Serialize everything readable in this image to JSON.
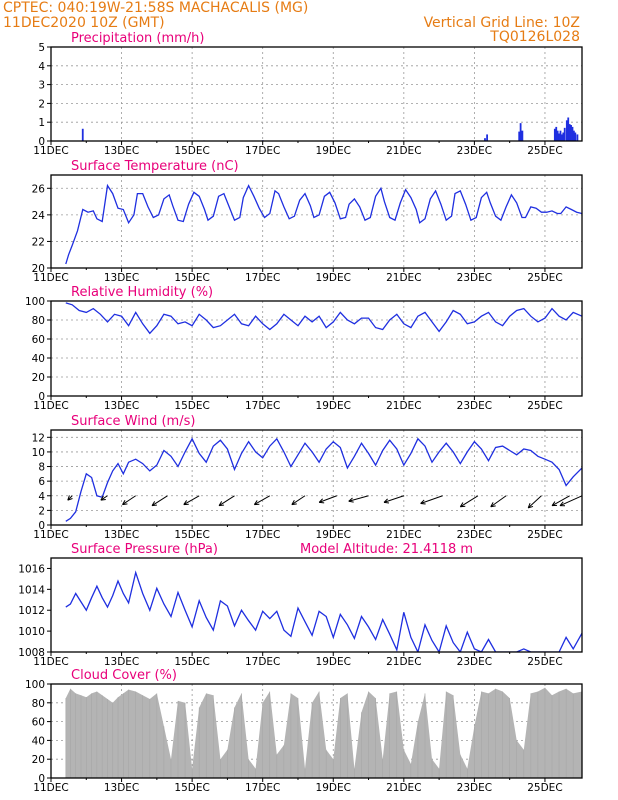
{
  "header": {
    "line1": "CPTEC:   040:19W-21:58S   MACHACALIS (MG)",
    "line2": "11DEC2020  10Z (GMT)",
    "grid_note": "Vertical Grid Line: 10Z",
    "run_code": "TQ0126L028"
  },
  "colors": {
    "header": "#e67c14",
    "title": "#e8007a",
    "series": "#1f2fe0",
    "cloud": "#b4b4b4",
    "grid": "#999999"
  },
  "x_tick_labels": [
    "11DEC",
    "13DEC",
    "15DEC",
    "17DEC",
    "19DEC",
    "21DEC",
    "23DEC",
    "25DEC"
  ],
  "chart_data": [
    {
      "type": "bar",
      "title": "Precipitation (mm/h)",
      "ylim": [
        0,
        5
      ],
      "yticks": [
        0,
        1,
        2,
        3,
        4,
        5
      ],
      "grid": true,
      "x_unit": "days since 11DEC2020 00Z",
      "x": [
        0.9,
        4.34,
        6.0,
        12.3,
        12.36,
        13.27,
        13.31,
        13.36,
        14.28,
        14.32,
        14.36,
        14.4,
        14.44,
        14.48,
        14.52,
        14.56,
        14.62,
        14.66,
        14.7,
        14.74,
        14.78,
        14.82,
        14.86,
        14.92
      ],
      "values": [
        0.65,
        0.03,
        0.04,
        0.15,
        0.35,
        0.5,
        0.95,
        0.55,
        0.65,
        0.75,
        0.55,
        0.4,
        0.55,
        0.35,
        0.45,
        0.7,
        1.1,
        1.25,
        0.9,
        0.85,
        0.75,
        0.55,
        0.45,
        0.35
      ]
    },
    {
      "type": "line",
      "title": "Surface Temperature (nC)",
      "ylim": [
        20,
        27
      ],
      "yticks": [
        20,
        22,
        24,
        26
      ],
      "grid": true,
      "x_unit": "days since 11DEC2020 00Z",
      "x": [
        0.42,
        0.5,
        0.6,
        0.75,
        0.9,
        1.05,
        1.2,
        1.3,
        1.45,
        1.6,
        1.75,
        1.9,
        2.05,
        2.2,
        2.35,
        2.45,
        2.6,
        2.75,
        2.9,
        3.05,
        3.2,
        3.35,
        3.45,
        3.6,
        3.75,
        3.9,
        4.05,
        4.2,
        4.35,
        4.45,
        4.6,
        4.75,
        4.9,
        5.05,
        5.2,
        5.35,
        5.45,
        5.6,
        5.75,
        5.9,
        6.05,
        6.2,
        6.35,
        6.45,
        6.6,
        6.75,
        6.9,
        7.05,
        7.2,
        7.35,
        7.45,
        7.6,
        7.75,
        7.9,
        8.05,
        8.2,
        8.35,
        8.45,
        8.6,
        8.75,
        8.9,
        9.05,
        9.2,
        9.35,
        9.45,
        9.6,
        9.75,
        9.9,
        10.05,
        10.2,
        10.35,
        10.45,
        10.6,
        10.75,
        10.9,
        11.05,
        11.2,
        11.35,
        11.45,
        11.6,
        11.75,
        11.9,
        12.05,
        12.2,
        12.35,
        12.45,
        12.6,
        12.75,
        12.9,
        13.05,
        13.2,
        13.35,
        13.45,
        13.6,
        13.75,
        13.9,
        14.05,
        14.2,
        14.35,
        14.45,
        14.6,
        14.75,
        14.9,
        15.05
      ],
      "values": [
        20.3,
        21.0,
        21.7,
        22.8,
        24.4,
        24.2,
        24.3,
        23.7,
        23.5,
        26.2,
        25.6,
        24.5,
        24.4,
        23.4,
        24.0,
        25.6,
        25.6,
        24.6,
        23.8,
        24.0,
        25.2,
        25.5,
        24.7,
        23.6,
        23.5,
        24.8,
        25.7,
        25.4,
        24.4,
        23.6,
        23.9,
        25.4,
        25.6,
        24.6,
        23.6,
        23.8,
        25.3,
        26.2,
        25.4,
        24.5,
        23.8,
        24.1,
        25.8,
        25.6,
        24.6,
        23.7,
        23.9,
        25.1,
        25.6,
        24.7,
        23.8,
        24.0,
        25.4,
        25.7,
        24.9,
        23.7,
        23.8,
        24.8,
        25.2,
        24.6,
        23.6,
        23.8,
        25.4,
        26.0,
        25.0,
        23.8,
        23.6,
        24.9,
        25.9,
        25.3,
        24.4,
        23.4,
        23.7,
        25.2,
        25.8,
        24.8,
        23.6,
        23.9,
        25.6,
        25.8,
        24.8,
        23.6,
        23.8,
        25.3,
        25.7,
        24.9,
        23.9,
        23.6,
        24.6,
        25.5,
        24.9,
        23.8,
        23.8,
        24.6,
        24.5,
        24.2,
        24.2,
        24.3,
        24.1,
        24.1,
        24.6,
        24.4,
        24.2,
        24.1
      ]
    },
    {
      "type": "line",
      "title": "Relative Humidity (%)",
      "ylim": [
        0,
        100
      ],
      "yticks": [
        0,
        20,
        40,
        60,
        80,
        100
      ],
      "grid": true,
      "x_unit": "days since 11DEC2020 00Z",
      "x": [
        0.42,
        0.6,
        0.8,
        1.0,
        1.2,
        1.4,
        1.6,
        1.8,
        2.0,
        2.2,
        2.4,
        2.6,
        2.8,
        3.0,
        3.2,
        3.4,
        3.6,
        3.8,
        4.0,
        4.2,
        4.4,
        4.6,
        4.8,
        5.0,
        5.2,
        5.4,
        5.6,
        5.8,
        6.0,
        6.2,
        6.4,
        6.6,
        6.8,
        7.0,
        7.2,
        7.4,
        7.6,
        7.8,
        8.0,
        8.2,
        8.4,
        8.6,
        8.8,
        9.0,
        9.2,
        9.4,
        9.6,
        9.8,
        10.0,
        10.2,
        10.4,
        10.6,
        10.8,
        11.0,
        11.2,
        11.4,
        11.6,
        11.8,
        12.0,
        12.2,
        12.4,
        12.6,
        12.8,
        13.0,
        13.2,
        13.4,
        13.6,
        13.8,
        14.0,
        14.2,
        14.4,
        14.6,
        14.8,
        15.05
      ],
      "values": [
        98,
        96,
        90,
        88,
        92,
        86,
        78,
        86,
        84,
        74,
        88,
        76,
        66,
        74,
        86,
        84,
        76,
        78,
        74,
        86,
        80,
        72,
        74,
        80,
        86,
        76,
        74,
        84,
        76,
        70,
        76,
        86,
        80,
        74,
        84,
        78,
        84,
        72,
        78,
        88,
        80,
        76,
        82,
        82,
        72,
        70,
        80,
        86,
        76,
        72,
        84,
        88,
        78,
        68,
        78,
        90,
        86,
        76,
        78,
        84,
        88,
        78,
        74,
        84,
        90,
        92,
        84,
        78,
        82,
        92,
        84,
        80,
        88,
        84
      ]
    },
    {
      "type": "line",
      "title": "Surface Wind (m/s)",
      "ylim": [
        0,
        13
      ],
      "yticks": [
        0,
        2,
        4,
        6,
        8,
        10,
        12
      ],
      "grid": true,
      "x_unit": "days since 11DEC2020 00Z",
      "x": [
        0.42,
        0.55,
        0.7,
        0.85,
        1.0,
        1.15,
        1.3,
        1.45,
        1.6,
        1.75,
        1.9,
        2.05,
        2.2,
        2.4,
        2.6,
        2.8,
        3.0,
        3.2,
        3.4,
        3.6,
        3.8,
        4.0,
        4.2,
        4.4,
        4.6,
        4.8,
        5.0,
        5.2,
        5.4,
        5.6,
        5.8,
        6.0,
        6.2,
        6.4,
        6.6,
        6.8,
        7.0,
        7.2,
        7.4,
        7.6,
        7.8,
        8.0,
        8.2,
        8.4,
        8.6,
        8.8,
        9.0,
        9.2,
        9.4,
        9.6,
        9.8,
        10.0,
        10.2,
        10.4,
        10.6,
        10.8,
        11.0,
        11.2,
        11.4,
        11.6,
        11.8,
        12.0,
        12.2,
        12.4,
        12.6,
        12.8,
        13.0,
        13.2,
        13.4,
        13.6,
        13.8,
        14.0,
        14.2,
        14.4,
        14.6,
        14.8,
        15.05
      ],
      "values": [
        0.5,
        0.9,
        1.8,
        4.6,
        7.0,
        6.5,
        4.0,
        3.8,
        5.8,
        7.4,
        8.4,
        7.0,
        8.6,
        9.0,
        8.4,
        7.4,
        8.2,
        10.2,
        9.4,
        8.0,
        10.0,
        11.8,
        9.8,
        8.6,
        10.8,
        11.6,
        10.4,
        7.6,
        9.8,
        11.4,
        10.0,
        9.2,
        10.8,
        11.8,
        10.0,
        8.0,
        9.6,
        11.2,
        10.0,
        8.6,
        10.4,
        11.4,
        10.6,
        7.8,
        9.4,
        11.2,
        9.8,
        8.2,
        10.2,
        11.6,
        10.4,
        8.2,
        9.8,
        11.8,
        10.8,
        8.6,
        10.0,
        11.2,
        10.0,
        8.4,
        10.0,
        11.4,
        10.4,
        8.8,
        10.6,
        10.8,
        10.2,
        9.6,
        10.4,
        10.2,
        9.4,
        9.0,
        8.6,
        7.6,
        5.4,
        6.6,
        7.8
      ],
      "vector_x": [
        0.6,
        1.6,
        2.4,
        3.3,
        4.2,
        5.2,
        6.2,
        7.2,
        8.1,
        9.0,
        10.0,
        11.1,
        12.1,
        12.9,
        13.9,
        14.7,
        15.05
      ],
      "vector_u": [
        -2,
        -3,
        -6,
        -7,
        -7,
        -7,
        -7,
        -6,
        -8,
        -9,
        -9,
        -10,
        -8,
        -7,
        -6,
        -8,
        -10
      ],
      "vector_v": [
        -4,
        -4,
        -8,
        -9,
        -8,
        -9,
        -8,
        -8,
        -6,
        -5,
        -6,
        -7,
        -10,
        -10,
        -11,
        -9,
        -9
      ]
    },
    {
      "type": "line",
      "title": "Surface Pressure (hPa)",
      "subtitle": "Model Altitude: 21.4118 m",
      "ylim": [
        1008,
        1017
      ],
      "yticks": [
        1008,
        1010,
        1012,
        1014,
        1016
      ],
      "grid": false,
      "x_unit": "days since 11DEC2020 00Z",
      "x": [
        0.42,
        0.55,
        0.7,
        0.85,
        1.0,
        1.15,
        1.3,
        1.45,
        1.6,
        1.75,
        1.9,
        2.05,
        2.2,
        2.4,
        2.6,
        2.8,
        3.0,
        3.2,
        3.4,
        3.6,
        3.8,
        4.0,
        4.2,
        4.4,
        4.6,
        4.8,
        5.0,
        5.2,
        5.4,
        5.6,
        5.8,
        6.0,
        6.2,
        6.4,
        6.6,
        6.8,
        7.0,
        7.2,
        7.4,
        7.6,
        7.8,
        8.0,
        8.2,
        8.4,
        8.6,
        8.8,
        9.0,
        9.2,
        9.4,
        9.6,
        9.8,
        10.0,
        10.2,
        10.4,
        10.6,
        10.8,
        11.0,
        11.2,
        11.4,
        11.6,
        11.8,
        12.0,
        12.2,
        12.4,
        12.6,
        12.8,
        13.0,
        13.2,
        13.4,
        13.6,
        13.8,
        14.0,
        14.2,
        14.4,
        14.6,
        14.8,
        15.05
      ],
      "values": [
        1012.3,
        1012.6,
        1013.6,
        1012.8,
        1012.0,
        1013.2,
        1014.3,
        1013.2,
        1012.3,
        1013.4,
        1014.8,
        1013.6,
        1012.7,
        1015.6,
        1013.6,
        1012.0,
        1014.1,
        1012.6,
        1011.4,
        1013.7,
        1012.0,
        1010.4,
        1012.9,
        1011.3,
        1010.1,
        1012.9,
        1012.4,
        1010.5,
        1012.0,
        1011.0,
        1010.1,
        1011.9,
        1011.2,
        1011.9,
        1010.1,
        1009.5,
        1012.2,
        1010.9,
        1009.6,
        1011.9,
        1011.4,
        1009.4,
        1011.6,
        1010.6,
        1009.3,
        1011.4,
        1010.4,
        1009.2,
        1011.1,
        1009.7,
        1008.2,
        1011.8,
        1009.4,
        1008.0,
        1010.6,
        1009.1,
        1008.0,
        1010.5,
        1008.9,
        1008.0,
        1009.9,
        1008.3,
        1008.0,
        1009.2,
        1008.0,
        1008.0,
        1008.0,
        1008.0,
        1008.3,
        1008.0,
        1008.0,
        1008.0,
        1008.0,
        1008.0,
        1009.4,
        1008.3,
        1009.8
      ]
    },
    {
      "type": "area",
      "title": "Cloud Cover (%)",
      "ylim": [
        0,
        100
      ],
      "yticks": [
        0,
        20,
        40,
        60,
        80,
        100
      ],
      "grid": true,
      "x_unit": "days since 11DEC2020 00Z",
      "x": [
        0.42,
        0.55,
        0.7,
        0.85,
        1.0,
        1.15,
        1.3,
        1.45,
        1.6,
        1.75,
        1.9,
        2.05,
        2.2,
        2.4,
        2.6,
        2.8,
        3.0,
        3.2,
        3.4,
        3.6,
        3.8,
        4.0,
        4.2,
        4.4,
        4.6,
        4.8,
        5.0,
        5.2,
        5.4,
        5.6,
        5.8,
        6.0,
        6.2,
        6.4,
        6.6,
        6.8,
        7.0,
        7.2,
        7.4,
        7.6,
        7.8,
        8.0,
        8.2,
        8.4,
        8.6,
        8.8,
        9.0,
        9.2,
        9.4,
        9.6,
        9.8,
        10.0,
        10.2,
        10.4,
        10.6,
        10.8,
        11.0,
        11.2,
        11.4,
        11.6,
        11.8,
        12.0,
        12.2,
        12.4,
        12.6,
        12.8,
        13.0,
        13.2,
        13.4,
        13.6,
        13.8,
        14.0,
        14.2,
        14.4,
        14.6,
        14.8,
        15.05
      ],
      "values": [
        85,
        95,
        90,
        88,
        86,
        90,
        92,
        88,
        84,
        80,
        86,
        90,
        94,
        92,
        88,
        84,
        90,
        55,
        20,
        82,
        80,
        10,
        75,
        90,
        88,
        20,
        30,
        75,
        90,
        20,
        10,
        80,
        92,
        25,
        35,
        90,
        85,
        10,
        80,
        92,
        30,
        20,
        85,
        90,
        10,
        70,
        92,
        85,
        20,
        90,
        92,
        30,
        15,
        60,
        90,
        20,
        10,
        92,
        88,
        25,
        10,
        55,
        92,
        90,
        95,
        92,
        85,
        40,
        30,
        90,
        92,
        96,
        88,
        92,
        95,
        90,
        92
      ]
    }
  ]
}
